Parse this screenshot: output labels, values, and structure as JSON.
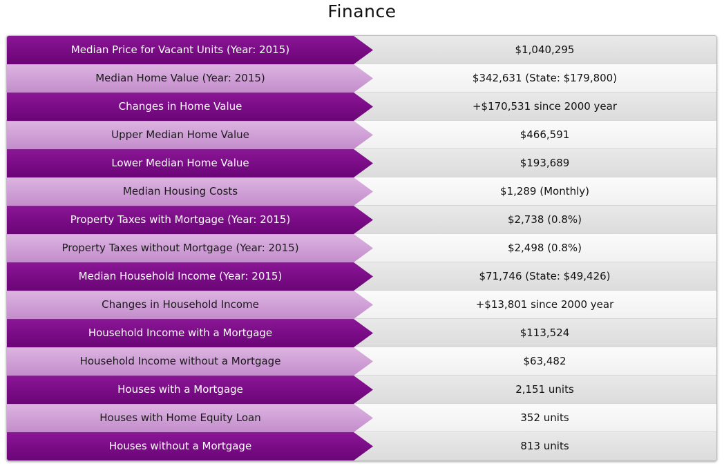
{
  "title": "Finance",
  "rows": [
    {
      "label": "Median Price for Vacant Units (Year: 2015)",
      "value": "$1,040,295"
    },
    {
      "label": "Median Home Value (Year: 2015)",
      "value": "$342,631 (State: $179,800)"
    },
    {
      "label": "Changes in Home Value",
      "value": "+$170,531 since 2000 year"
    },
    {
      "label": "Upper Median Home Value",
      "value": "$466,591"
    },
    {
      "label": "Lower Median Home Value",
      "value": "$193,689"
    },
    {
      "label": "Median Housing Costs",
      "value": "$1,289 (Monthly)"
    },
    {
      "label": "Property Taxes with Mortgage (Year: 2015)",
      "value": "$2,738 (0.8%)"
    },
    {
      "label": "Property Taxes without Mortgage (Year: 2015)",
      "value": "$2,498 (0.8%)"
    },
    {
      "label": "Median Household Income (Year: 2015)",
      "value": "$71,746 (State: $49,426)"
    },
    {
      "label": "Changes in Household Income",
      "value": "+$13,801 since 2000 year"
    },
    {
      "label": "Household Income with a Mortgage",
      "value": "$113,524"
    },
    {
      "label": "Household Income without a Mortgage",
      "value": "$63,482"
    },
    {
      "label": "Houses with a Mortgage",
      "value": "2,151 units"
    },
    {
      "label": "Houses with Home Equity Loan",
      "value": "352 units"
    },
    {
      "label": "Houses without a Mortgage",
      "value": "813 units"
    }
  ],
  "colors": {
    "label_dark": "#7a0c86",
    "label_light": "#cf9fd6",
    "value_dark": "#e2e2e2",
    "value_light": "#f6f6f6"
  }
}
